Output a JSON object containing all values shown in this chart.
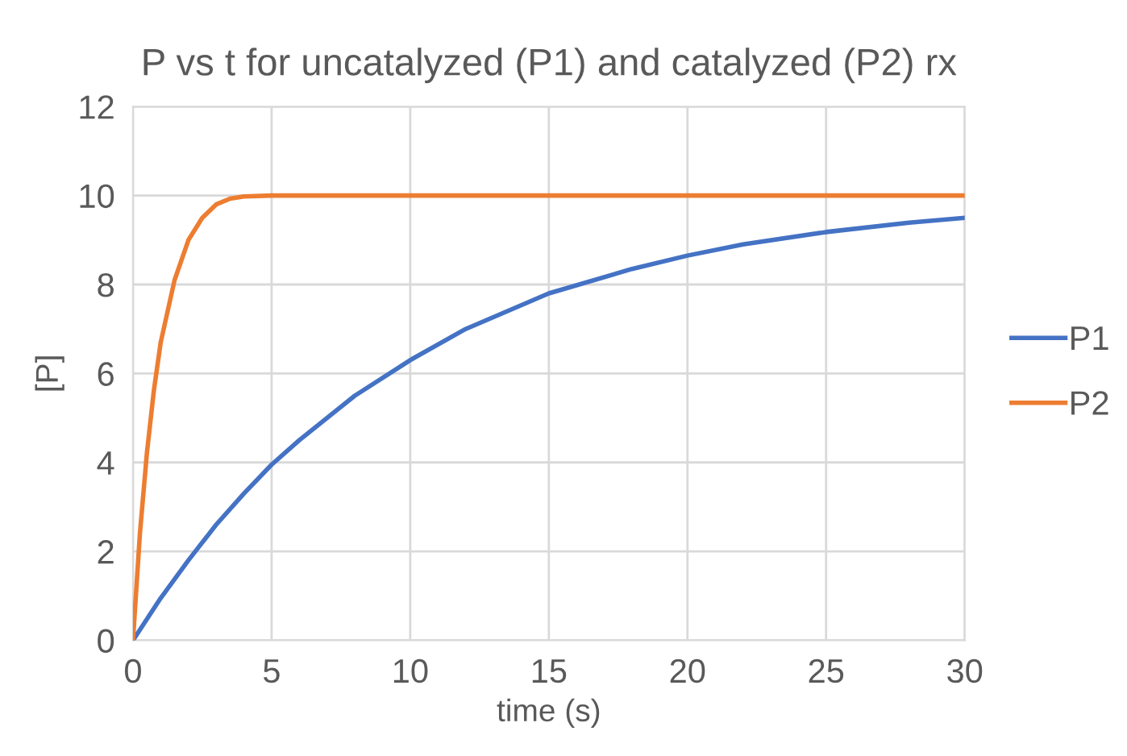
{
  "chart_data": {
    "type": "line",
    "title": "P vs t for uncatalyzed (P1) and catalyzed (P2) rx",
    "xlabel": "time (s)",
    "ylabel": "[P]",
    "xlim": [
      0,
      30
    ],
    "xticks": [
      0,
      5,
      10,
      15,
      20,
      25,
      30
    ],
    "ylim": [
      0,
      12
    ],
    "yticks": [
      0,
      2,
      4,
      6,
      8,
      10,
      12
    ],
    "grid": true,
    "legend": "right",
    "marker": "none",
    "line_style": "solid",
    "series": [
      {
        "name": "P1",
        "color": "#4472c4",
        "x": [
          0,
          1,
          2,
          3,
          4,
          5,
          6,
          8,
          10,
          12,
          15,
          18,
          20,
          22,
          25,
          28,
          30
        ],
        "values": [
          0,
          0.95,
          1.8,
          2.6,
          3.3,
          3.95,
          4.5,
          5.5,
          6.3,
          7.0,
          7.8,
          8.35,
          8.65,
          8.9,
          9.18,
          9.39,
          9.5
        ]
      },
      {
        "name": "P2",
        "color": "#ed7d31",
        "x": [
          0,
          0.25,
          0.5,
          0.75,
          1,
          1.5,
          2,
          2.5,
          3,
          3.5,
          4,
          5,
          10,
          20,
          30
        ],
        "values": [
          0,
          2.4,
          4.2,
          5.6,
          6.7,
          8.1,
          9.0,
          9.5,
          9.8,
          9.93,
          9.98,
          10,
          10,
          10,
          10
        ]
      }
    ]
  }
}
